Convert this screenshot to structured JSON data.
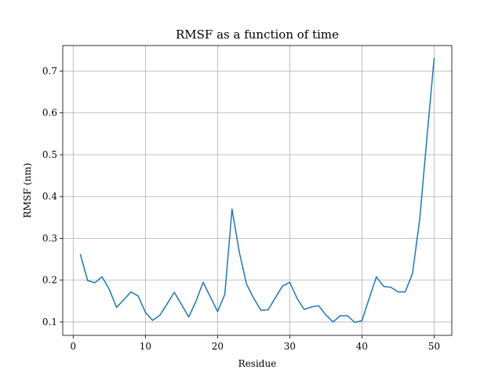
{
  "chart_data": {
    "type": "line",
    "title": "RMSF as a function of time",
    "xlabel": "Residue",
    "ylabel": "RMSF (nm)",
    "xlim": [
      -1.45,
      52.45
    ],
    "ylim": [
      0.068,
      0.761
    ],
    "xticks": [
      0,
      10,
      20,
      30,
      40,
      50
    ],
    "yticks": [
      0.1,
      0.2,
      0.3,
      0.4,
      0.5,
      0.6,
      0.7
    ],
    "xtick_labels": [
      "0",
      "10",
      "20",
      "30",
      "40",
      "50"
    ],
    "ytick_labels": [
      "0.1",
      "0.2",
      "0.3",
      "0.4",
      "0.5",
      "0.6",
      "0.7"
    ],
    "grid": true,
    "colors": {
      "series": "#1f77b4"
    },
    "series": [
      {
        "x": [
          1,
          2,
          3,
          4,
          5,
          6,
          7,
          8,
          9,
          10,
          11,
          12,
          13,
          14,
          15,
          16,
          17,
          18,
          19,
          20,
          21,
          22,
          23,
          24,
          25,
          26,
          27,
          28,
          29,
          30,
          31,
          32,
          33,
          34,
          35,
          36,
          37,
          38,
          39,
          40,
          41,
          42,
          43,
          44,
          45,
          46,
          47,
          48,
          49,
          50
        ],
        "values": [
          0.261,
          0.199,
          0.194,
          0.208,
          0.178,
          0.135,
          0.153,
          0.172,
          0.162,
          0.123,
          0.104,
          0.116,
          0.143,
          0.171,
          0.142,
          0.112,
          0.149,
          0.195,
          0.16,
          0.125,
          0.166,
          0.37,
          0.268,
          0.191,
          0.157,
          0.128,
          0.129,
          0.158,
          0.186,
          0.195,
          0.157,
          0.13,
          0.136,
          0.139,
          0.117,
          0.1,
          0.115,
          0.115,
          0.099,
          0.103,
          0.156,
          0.208,
          0.185,
          0.183,
          0.172,
          0.172,
          0.216,
          0.345,
          0.54,
          0.73
        ]
      }
    ]
  }
}
